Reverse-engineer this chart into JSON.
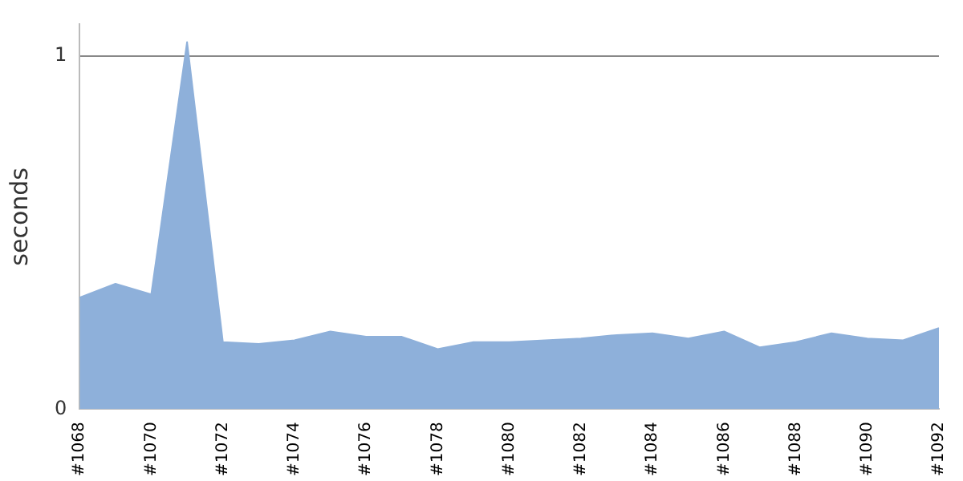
{
  "chart_data": {
    "type": "area",
    "ylabel": "seconds",
    "categories": [
      "#1068",
      null,
      "#1070",
      null,
      "#1072",
      null,
      "#1074",
      null,
      "#1076",
      null,
      "#1078",
      null,
      "#1080",
      null,
      "#1082",
      null,
      "#1084",
      null,
      "#1086",
      null,
      "#1088",
      null,
      "#1090",
      null,
      "#1092"
    ],
    "series": [
      {
        "color": "#8eb0da",
        "values": [
          0.316,
          0.355,
          0.325,
          1.04,
          0.19,
          0.185,
          0.195,
          0.22,
          0.205,
          0.205,
          0.17,
          0.19,
          0.19,
          0.195,
          0.2,
          0.21,
          0.215,
          0.2,
          0.22,
          0.175,
          0.19,
          0.215,
          0.2,
          0.195,
          0.23
        ]
      }
    ],
    "ylim": [
      0,
      1.09
    ],
    "yticks": [
      0,
      1
    ],
    "grid": "y",
    "legend": false
  }
}
